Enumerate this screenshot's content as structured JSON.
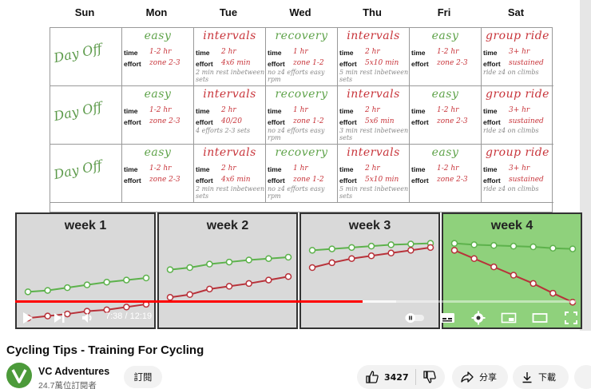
{
  "schedule": {
    "days": [
      "Sun",
      "Mon",
      "Tue",
      "Wed",
      "Thu",
      "Fri",
      "Sat"
    ],
    "labels": {
      "time": "time",
      "effort": "effort"
    },
    "day_off": "Day Off",
    "rows": [
      {
        "cells": [
          {
            "title": "easy",
            "time": "1-2 hr",
            "effort": "zone 2-3",
            "note": ""
          },
          {
            "title": "intervals",
            "time": "2 hr",
            "effort": "4x6 min",
            "note": "2 min rest inbetween sets"
          },
          {
            "title": "recovery",
            "time": "1 hr",
            "effort": "zone 1-2",
            "note": "no z4 efforts easy rpm"
          },
          {
            "title": "intervals",
            "time": "2 hr",
            "effort": "5x10 min",
            "note": "5 min rest inbetween sets"
          },
          {
            "title": "easy",
            "time": "1-2 hr",
            "effort": "zone 2-3",
            "note": ""
          },
          {
            "title": "group ride",
            "time": "3+ hr",
            "effort": "sustained",
            "note": "ride z4 on climbs"
          }
        ]
      },
      {
        "cells": [
          {
            "title": "easy",
            "time": "1-2 hr",
            "effort": "zone 2-3",
            "note": ""
          },
          {
            "title": "intervals",
            "time": "2 hr",
            "effort": "40/20",
            "note": "4 efforts 2-3 sets"
          },
          {
            "title": "recovery",
            "time": "1 hr",
            "effort": "zone 1-2",
            "note": "no z4 efforts easy rpm"
          },
          {
            "title": "intervals",
            "time": "2 hr",
            "effort": "5x6 min",
            "note": "3 min rest inbetween sets"
          },
          {
            "title": "easy",
            "time": "1-2 hr",
            "effort": "zone 2-3",
            "note": ""
          },
          {
            "title": "group ride",
            "time": "3+ hr",
            "effort": "sustained",
            "note": "ride z4 on climbs"
          }
        ]
      },
      {
        "cells": [
          {
            "title": "easy",
            "time": "1-2 hr",
            "effort": "zone 2-3",
            "note": ""
          },
          {
            "title": "intervals",
            "time": "2 hr",
            "effort": "4x6 min",
            "note": "2 min rest inbetween sets"
          },
          {
            "title": "recovery",
            "time": "1 hr",
            "effort": "zone 1-2",
            "note": "no z4 efforts easy rpm"
          },
          {
            "title": "intervals",
            "time": "2 hr",
            "effort": "5x10 min",
            "note": "5 min rest inbetween sets"
          },
          {
            "title": "easy",
            "time": "1-2 hr",
            "effort": "zone 2-3",
            "note": ""
          },
          {
            "title": "group ride",
            "time": "3+ hr",
            "effort": "sustained",
            "note": "ride z4 on climbs"
          }
        ]
      }
    ]
  },
  "weeks": [
    {
      "title": "week 1",
      "green": [
        0.1,
        0.12,
        0.16,
        0.2,
        0.24,
        0.27,
        0.3
      ],
      "red": [
        -0.28,
        -0.25,
        -0.22,
        -0.18,
        -0.16,
        -0.12,
        -0.08
      ]
    },
    {
      "title": "week 2",
      "green": [
        0.42,
        0.45,
        0.5,
        0.53,
        0.56,
        0.58,
        0.6
      ],
      "red": [
        0.02,
        0.06,
        0.14,
        0.18,
        0.22,
        0.27,
        0.32
      ]
    },
    {
      "title": "week 3",
      "green": [
        0.7,
        0.72,
        0.74,
        0.76,
        0.78,
        0.79,
        0.8
      ],
      "red": [
        0.45,
        0.52,
        0.58,
        0.62,
        0.66,
        0.7,
        0.74
      ]
    },
    {
      "title": "week 4",
      "green": [
        0.8,
        0.78,
        0.77,
        0.76,
        0.75,
        0.73,
        0.72
      ],
      "red": [
        0.7,
        0.58,
        0.46,
        0.34,
        0.22,
        0.08,
        -0.05
      ]
    }
  ],
  "colors": {
    "green_line": "#5db24c",
    "red_line": "#b8323a",
    "progress": "#ff0000",
    "week4_bg": "#8fd17c"
  },
  "player": {
    "current_time": "7:38",
    "separator": " / ",
    "duration": "12:19",
    "progress_fraction": 0.62,
    "buffered_fraction": 0.68,
    "icons": [
      "play-icon",
      "next-icon",
      "volume-icon",
      "autoplay-toggle-icon",
      "subtitles-icon",
      "settings-icon",
      "miniplayer-icon",
      "theater-icon",
      "fullscreen-icon"
    ]
  },
  "info": {
    "title": "Cycling Tips - Training For Cycling",
    "channel_name": "VC Adventures",
    "subscribers": "24.7萬位訂閱者",
    "subscribe_label": "訂閱",
    "likes": "3427",
    "share_label": "分享",
    "download_label": "下載"
  }
}
